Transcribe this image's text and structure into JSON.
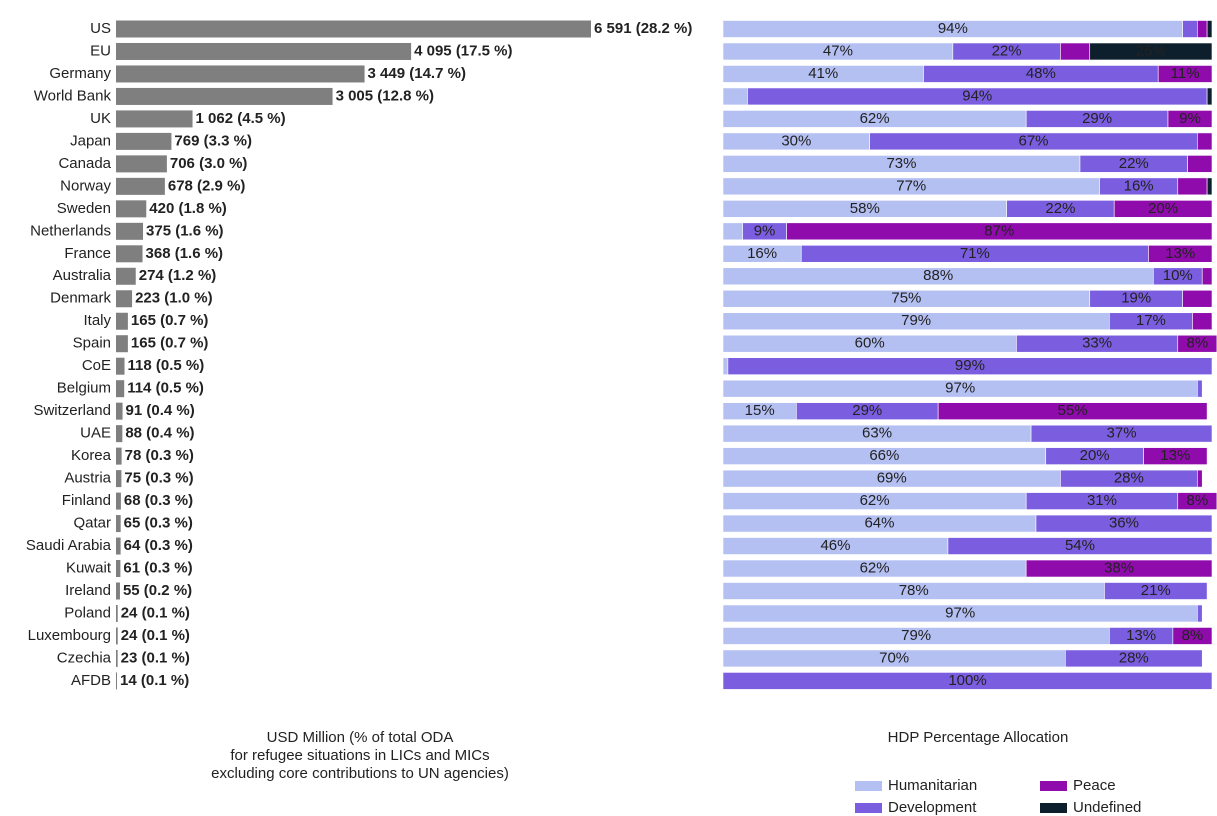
{
  "chart_data": [
    {
      "type": "hbar",
      "categories": [
        "US",
        "EU",
        "Germany",
        "World Bank",
        "UK",
        "Japan",
        "Canada",
        "Norway",
        "Sweden",
        "Netherlands",
        "France",
        "Australia",
        "Denmark",
        "Italy",
        "Spain",
        "CoE",
        "Belgium",
        "Switzerland",
        "UAE",
        "Korea",
        "Austria",
        "Finland",
        "Qatar",
        "Saudi Arabia",
        "Kuwait",
        "Ireland",
        "Poland",
        "Luxembourg",
        "Czechia",
        "AFDB"
      ],
      "values": [
        6591,
        4095,
        3449,
        3005,
        1062,
        769,
        706,
        678,
        420,
        375,
        368,
        274,
        223,
        165,
        165,
        118,
        114,
        91,
        88,
        78,
        75,
        68,
        65,
        64,
        61,
        55,
        24,
        24,
        23,
        14
      ],
      "value_labels": [
        "6 591 (28.2 %)",
        "4 095 (17.5 %)",
        "3 449 (14.7 %)",
        "3 005 (12.8 %)",
        "1 062 (4.5 %)",
        "769 (3.3 %)",
        "706 (3.0 %)",
        "678 (2.9 %)",
        "420 (1.8 %)",
        "375 (1.6 %)",
        "368 (1.6 %)",
        "274 (1.2 %)",
        "223 (1.0 %)",
        "165 (0.7 %)",
        "165 (0.7 %)",
        "118 (0.5 %)",
        "114 (0.5 %)",
        "91 (0.4 %)",
        "88 (0.4 %)",
        "78 (0.3 %)",
        "75 (0.3 %)",
        "68 (0.3 %)",
        "65 (0.3 %)",
        "64 (0.3 %)",
        "61 (0.3 %)",
        "55 (0.2 %)",
        "24 (0.1 %)",
        "24 (0.1 %)",
        "23 (0.1 %)",
        "14 (0.1 %)"
      ],
      "color": "#7f7f7f",
      "xlabel": [
        "USD Million (% of total ODA",
        "for refugee situations in LICs and MICs",
        "excluding core contributions to UN agencies)"
      ]
    },
    {
      "type": "stacked_hbar",
      "title": "HDP Percentage Allocation",
      "xlim": [
        0,
        100
      ],
      "series": [
        {
          "name": "Humanitarian",
          "color": "#b4bff2",
          "values": [
            94,
            47,
            41,
            5,
            62,
            30,
            73,
            77,
            58,
            4,
            16,
            88,
            75,
            79,
            60,
            1,
            97,
            15,
            63,
            66,
            69,
            62,
            64,
            46,
            62,
            78,
            97,
            79,
            70,
            0
          ],
          "value_labels": [
            "94%",
            "47%",
            "41%",
            null,
            "62%",
            "30%",
            "73%",
            "77%",
            "58%",
            null,
            "16%",
            "88%",
            "75%",
            "79%",
            "60%",
            null,
            "97%",
            "15%",
            "63%",
            "66%",
            "69%",
            "62%",
            "64%",
            "46%",
            "62%",
            "78%",
            "97%",
            "79%",
            "70%",
            null
          ]
        },
        {
          "name": "Development",
          "color": "#7b5ee0",
          "values": [
            3,
            22,
            48,
            94,
            29,
            67,
            22,
            16,
            22,
            9,
            71,
            10,
            19,
            17,
            33,
            99,
            1,
            29,
            37,
            20,
            28,
            31,
            36,
            54,
            0,
            21,
            1,
            13,
            28,
            100
          ],
          "value_labels": [
            null,
            "22%",
            "48%",
            "94%",
            "29%",
            "67%",
            "22%",
            "16%",
            "22%",
            "9%",
            "71%",
            "10%",
            "19%",
            "17%",
            "33%",
            "99%",
            null,
            "29%",
            "37%",
            "20%",
            "28%",
            "31%",
            "36%",
            "54%",
            null,
            "21%",
            null,
            "13%",
            "28%",
            "100%"
          ]
        },
        {
          "name": "Peace",
          "color": "#8f0bab",
          "values": [
            2,
            6,
            11,
            0,
            9,
            3,
            5,
            6,
            20,
            87,
            13,
            2,
            6,
            4,
            8,
            0,
            0,
            55,
            0,
            13,
            1,
            8,
            0,
            0,
            38,
            0,
            0,
            8,
            0,
            0
          ],
          "value_labels": [
            null,
            null,
            "11%",
            null,
            "9%",
            null,
            null,
            null,
            "20%",
            "87%",
            "13%",
            null,
            null,
            null,
            "8%",
            null,
            null,
            "55%",
            null,
            "13%",
            null,
            "8%",
            null,
            null,
            "38%",
            null,
            null,
            "8%",
            null,
            null
          ]
        },
        {
          "name": "Undefined",
          "color": "#0d1f2d",
          "values": [
            1,
            25,
            0,
            1,
            0,
            0,
            0,
            1,
            0,
            0,
            0,
            0,
            0,
            0,
            0,
            0,
            0,
            0,
            0,
            0,
            0,
            0,
            0,
            0,
            0,
            0,
            0,
            0,
            0,
            0
          ],
          "value_labels": [
            null,
            "25%",
            null,
            null,
            null,
            null,
            null,
            null,
            null,
            null,
            null,
            null,
            null,
            null,
            null,
            null,
            null,
            null,
            null,
            null,
            null,
            null,
            null,
            null,
            null,
            null,
            null,
            null,
            null,
            null
          ]
        }
      ]
    }
  ]
}
